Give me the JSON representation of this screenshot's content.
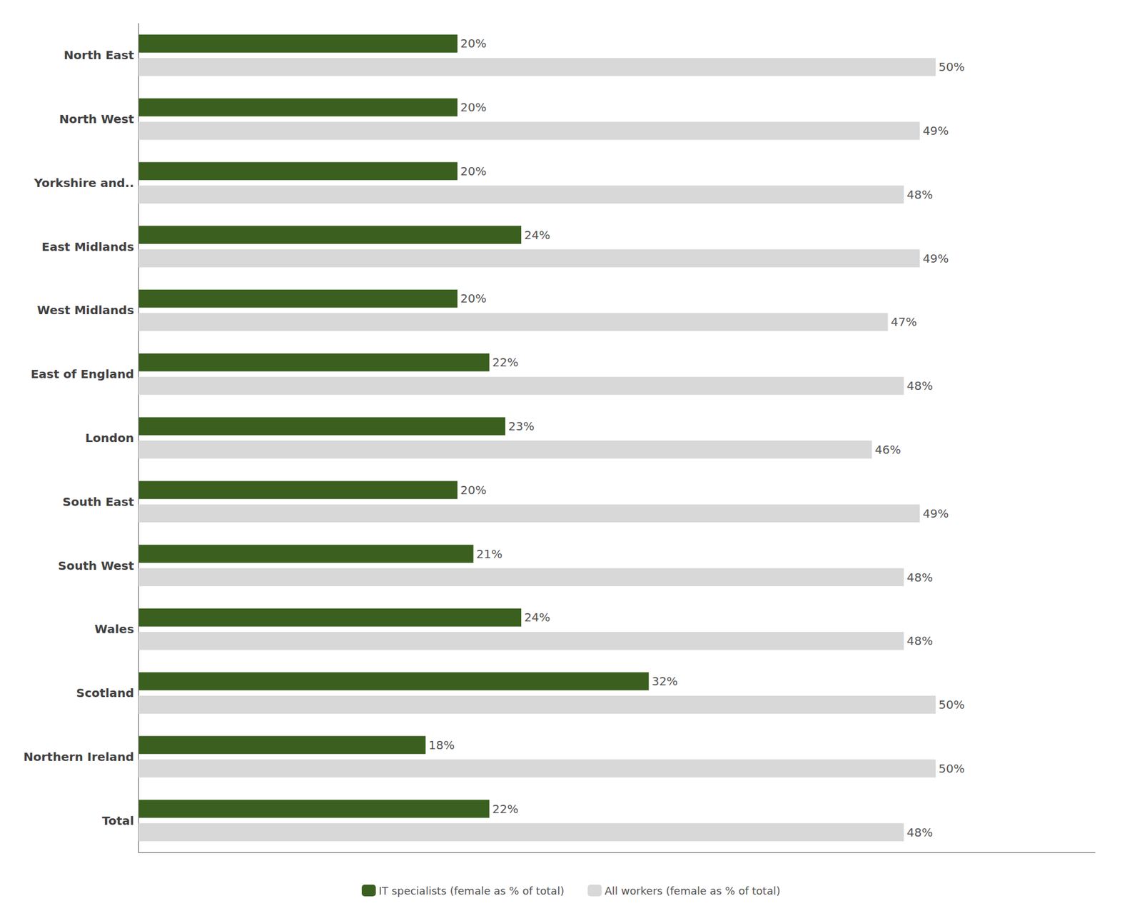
{
  "chart_data": {
    "type": "bar",
    "orientation": "horizontal",
    "categories": [
      "North East",
      "North West",
      "Yorkshire and..",
      "East Midlands",
      "West Midlands",
      "East of England",
      "London",
      "South East",
      "South West",
      "Wales",
      "Scotland",
      "Northern Ireland",
      "Total"
    ],
    "series": [
      {
        "name": "IT specialists (female as % of total)",
        "color": "#3a5f1e",
        "values": [
          20,
          20,
          20,
          24,
          20,
          22,
          23,
          20,
          21,
          24,
          32,
          18,
          22
        ],
        "value_labels": [
          "20%",
          "20%",
          "20%",
          "24%",
          "20%",
          "22%",
          "23%",
          "20%",
          "21%",
          "24%",
          "32%",
          "18%",
          "22%"
        ]
      },
      {
        "name": "All workers (female as % of total)",
        "color": "#d8d8d8",
        "values": [
          50,
          49,
          48,
          49,
          47,
          48,
          46,
          49,
          48,
          48,
          50,
          50,
          48
        ],
        "value_labels": [
          "50%",
          "49%",
          "48%",
          "49%",
          "47%",
          "48%",
          "46%",
          "49%",
          "48%",
          "48%",
          "50%",
          "50%",
          "48%"
        ]
      }
    ],
    "xlim": [
      0,
      60
    ],
    "data_labels": true,
    "tick_labels": "y",
    "grid": false,
    "legend": "bottom"
  }
}
